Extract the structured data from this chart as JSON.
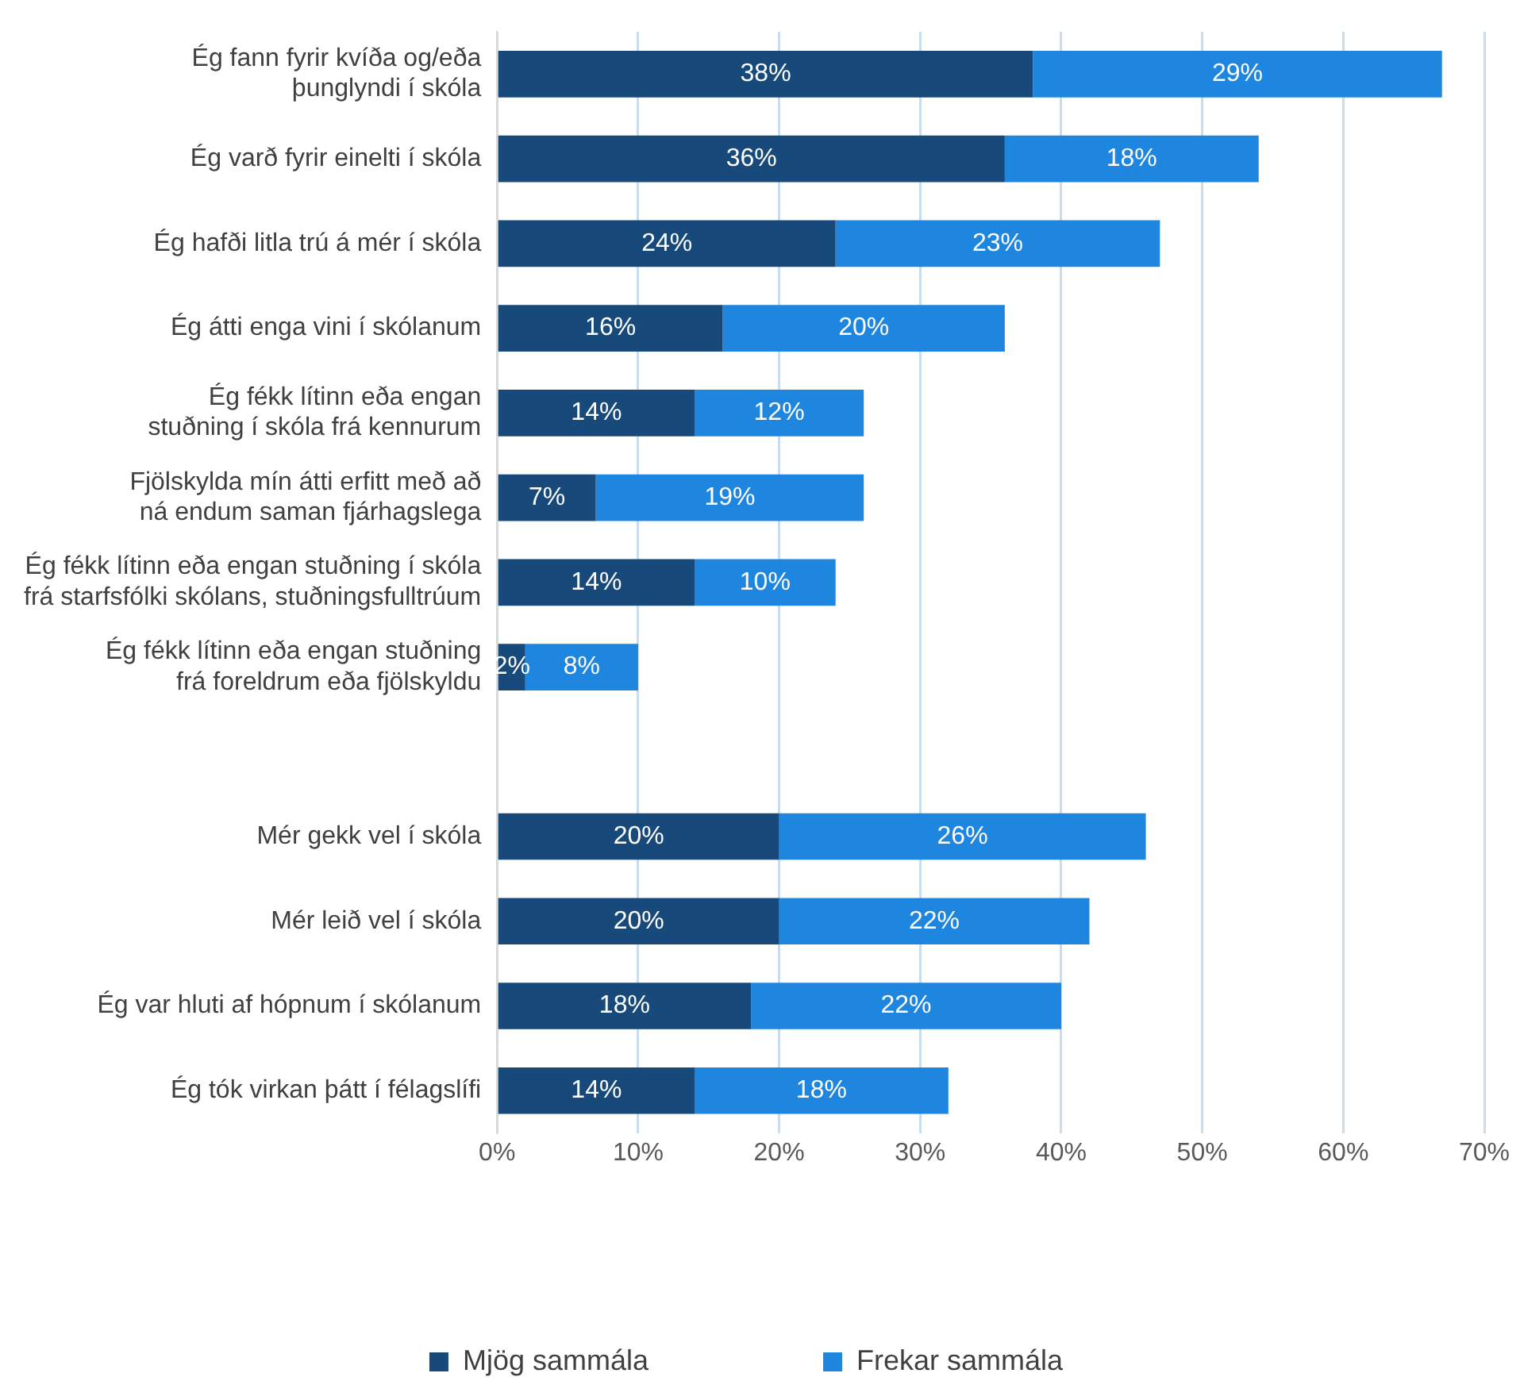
{
  "chart_data": {
    "type": "bar",
    "orientation": "horizontal",
    "stacked": true,
    "categories": [
      "Ég fann fyrir kvíða og/eða\nþunglyndi í skóla",
      "Ég varð fyrir einelti í skóla",
      "Ég hafði litla trú á mér í skóla",
      "Ég átti enga vini í skólanum",
      "Ég fékk lítinn eða engan\nstuðning í skóla frá kennurum",
      "Fjölskylda mín átti erfitt með að\nná endum saman fjárhagslega",
      "Ég fékk lítinn eða engan stuðning í skóla\nfrá starfsfólki skólans, stuðningsfulltrúum",
      "Ég fékk lítinn eða engan stuðning\nfrá foreldrum eða fjölskyldu",
      null,
      "Mér gekk vel í skóla",
      "Mér leið vel í skóla",
      "Ég var hluti af hópnum í skólanum",
      "Ég tók virkan þátt í félagslífi"
    ],
    "series": [
      {
        "name": "Mjög sammála",
        "color": "#17497a",
        "values": [
          38,
          36,
          24,
          16,
          14,
          7,
          14,
          2,
          null,
          20,
          20,
          18,
          14
        ],
        "value_labels": [
          "38%",
          "36%",
          "24%",
          "16%",
          "14%",
          "7%",
          "14%",
          "2%",
          null,
          "20%",
          "20%",
          "18%",
          "14%"
        ]
      },
      {
        "name": "Frekar sammála",
        "color": "#1f86e0",
        "values": [
          29,
          18,
          23,
          20,
          12,
          19,
          10,
          8,
          null,
          26,
          22,
          22,
          18
        ],
        "value_labels": [
          "29%",
          "18%",
          "23%",
          "20%",
          "12%",
          "19%",
          "10%",
          "8%",
          null,
          "26%",
          "22%",
          "22%",
          "18%"
        ]
      }
    ],
    "xlim": [
      0,
      70
    ],
    "xticks": [
      {
        "value": 0,
        "label": "0%"
      },
      {
        "value": 10,
        "label": "10%"
      },
      {
        "value": 20,
        "label": "20%"
      },
      {
        "value": 30,
        "label": "30%"
      },
      {
        "value": 40,
        "label": "40%"
      },
      {
        "value": 50,
        "label": "50%"
      },
      {
        "value": 60,
        "label": "60%"
      },
      {
        "value": 70,
        "label": "70%"
      }
    ],
    "grid": "x",
    "legend": "bottom"
  }
}
